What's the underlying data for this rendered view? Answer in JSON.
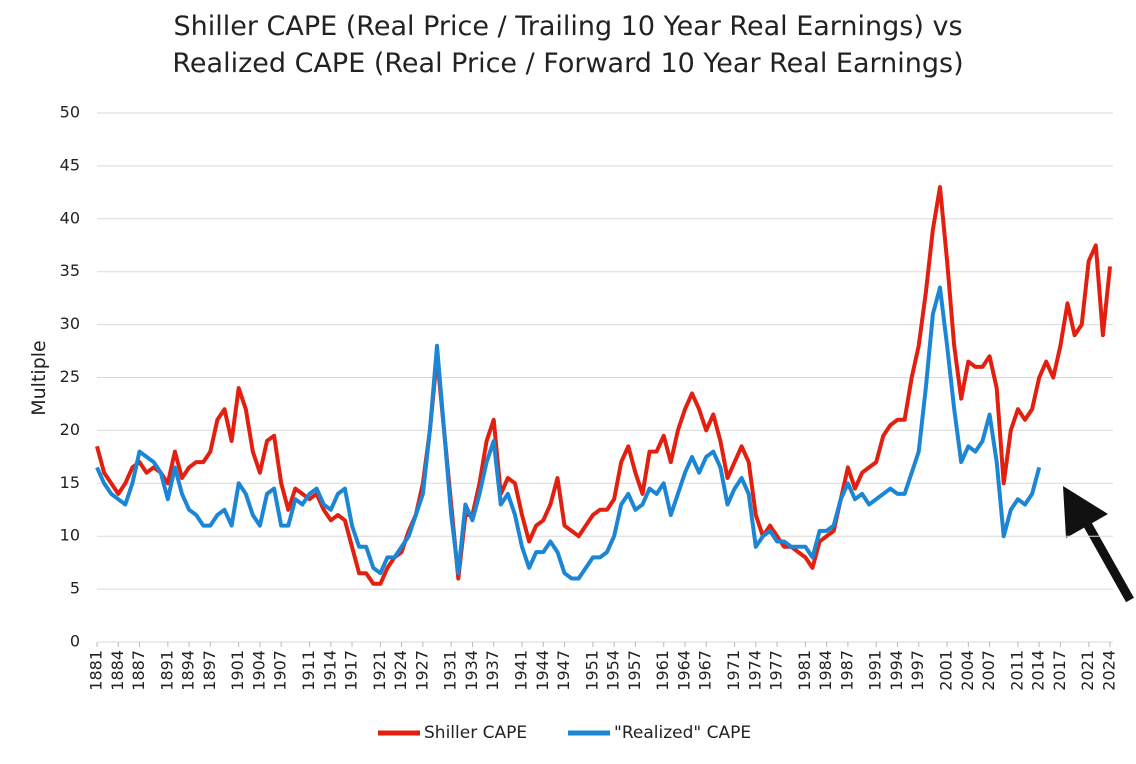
{
  "chart_data": {
    "type": "line",
    "title": [
      "Shiller CAPE (Real Price / Trailing 10 Year Real Earnings) vs",
      "Realized CAPE (Real Price / Forward 10 Year Real Earnings)"
    ],
    "y_label": "Multiple",
    "x": [
      1881,
      1882,
      1883,
      1884,
      1885,
      1886,
      1887,
      1888,
      1889,
      1890,
      1891,
      1892,
      1893,
      1894,
      1895,
      1896,
      1897,
      1898,
      1899,
      1900,
      1901,
      1902,
      1903,
      1904,
      1905,
      1906,
      1907,
      1908,
      1909,
      1910,
      1911,
      1912,
      1913,
      1914,
      1915,
      1916,
      1917,
      1918,
      1919,
      1920,
      1921,
      1922,
      1923,
      1924,
      1925,
      1926,
      1927,
      1928,
      1929,
      1930,
      1931,
      1932,
      1933,
      1934,
      1935,
      1936,
      1937,
      1938,
      1939,
      1940,
      1941,
      1942,
      1943,
      1944,
      1945,
      1946,
      1947,
      1948,
      1949,
      1950,
      1951,
      1952,
      1953,
      1954,
      1955,
      1956,
      1957,
      1958,
      1959,
      1960,
      1961,
      1962,
      1963,
      1964,
      1965,
      1966,
      1967,
      1968,
      1969,
      1970,
      1971,
      1972,
      1973,
      1974,
      1975,
      1976,
      1977,
      1978,
      1979,
      1980,
      1981,
      1982,
      1983,
      1984,
      1985,
      1986,
      1987,
      1988,
      1989,
      1990,
      1991,
      1992,
      1993,
      1994,
      1995,
      1996,
      1997,
      1998,
      1999,
      2000,
      2001,
      2002,
      2003,
      2004,
      2005,
      2006,
      2007,
      2008,
      2009,
      2010,
      2011,
      2012,
      2013,
      2014,
      2015,
      2016,
      2017,
      2018,
      2019,
      2020,
      2021,
      2022,
      2023,
      2024
    ],
    "series": [
      {
        "name": "Shiller CAPE",
        "color": "#e3200f",
        "values": [
          18.5,
          16,
          15,
          14,
          15,
          16.5,
          17,
          16,
          16.5,
          16,
          15,
          18,
          15.5,
          16.5,
          17,
          17,
          18,
          21,
          22,
          19,
          24,
          22,
          18,
          16,
          19,
          19.5,
          15,
          12.5,
          14.5,
          14,
          13.5,
          14,
          12.5,
          11.5,
          12,
          11.5,
          9,
          6.5,
          6.5,
          5.5,
          5.5,
          7,
          8,
          8.5,
          10.5,
          12,
          15,
          20,
          27,
          20,
          13,
          6,
          12,
          12,
          15,
          19,
          21,
          14,
          15.5,
          15,
          12,
          9.5,
          11,
          11.5,
          13,
          15.5,
          11,
          10.5,
          10,
          11,
          12,
          12.5,
          12.5,
          13.5,
          17,
          18.5,
          16,
          14,
          18,
          18,
          19.5,
          17,
          20,
          22,
          23.5,
          22,
          20,
          21.5,
          19,
          15.5,
          17,
          18.5,
          17,
          12,
          10,
          11,
          10,
          9,
          9,
          8.5,
          8,
          7,
          9.5,
          10,
          10.5,
          13.5,
          16.5,
          14.5,
          16,
          16.5,
          17,
          19.5,
          20.5,
          21,
          21,
          25,
          28,
          33,
          39,
          43,
          36,
          28,
          23,
          26.5,
          26,
          26,
          27,
          24,
          15,
          20,
          22,
          21,
          22,
          25,
          26.5,
          25,
          28,
          32,
          29,
          30,
          36,
          37.5,
          29,
          35.5
        ]
      },
      {
        "name": "\"Realized\" CAPE",
        "color": "#1c86d6",
        "values": [
          16.5,
          15,
          14,
          13.5,
          13,
          15,
          18,
          17.5,
          17,
          16,
          13.5,
          16.5,
          14,
          12.5,
          12,
          11,
          11,
          12,
          12.5,
          11,
          15,
          14,
          12,
          11,
          14,
          14.5,
          11,
          11,
          13.5,
          13,
          14,
          14.5,
          13,
          12.5,
          14,
          14.5,
          11,
          9,
          9,
          7,
          6.5,
          8,
          8,
          9,
          10,
          12,
          14,
          20,
          28,
          20,
          12,
          6.5,
          13,
          11.5,
          14,
          17,
          19,
          13,
          14,
          12,
          9,
          7,
          8.5,
          8.5,
          9.5,
          8.5,
          6.5,
          6,
          6,
          7,
          8,
          8,
          8.5,
          10,
          13,
          14,
          12.5,
          13,
          14.5,
          14,
          15,
          12,
          14,
          16,
          17.5,
          16,
          17.5,
          18,
          16.5,
          13,
          14.5,
          15.5,
          14,
          9,
          10,
          10.5,
          9.5,
          9.5,
          9,
          9,
          9,
          8,
          10.5,
          10.5,
          11,
          13.5,
          15,
          13.5,
          14,
          13,
          13.5,
          14,
          14.5,
          14,
          14,
          16,
          18,
          24,
          31,
          33.5,
          28,
          22,
          17,
          18.5,
          18,
          19,
          21.5,
          17,
          10,
          12.5,
          13.5,
          13,
          14,
          16.5,
          null,
          null,
          null,
          null,
          null,
          null,
          null,
          null,
          null,
          null
        ]
      }
    ],
    "xlim": [
      1881,
      2024
    ],
    "xticks": [
      1881,
      1884,
      1887,
      1891,
      1894,
      1897,
      1901,
      1904,
      1907,
      1911,
      1914,
      1917,
      1921,
      1924,
      1927,
      1931,
      1934,
      1937,
      1941,
      1944,
      1947,
      1951,
      1954,
      1957,
      1961,
      1964,
      1967,
      1971,
      1974,
      1977,
      1981,
      1984,
      1987,
      1991,
      1994,
      1997,
      2001,
      2004,
      2007,
      2011,
      2014,
      2017,
      2021,
      2024
    ],
    "ylim": [
      0,
      50
    ],
    "yticks": [
      0,
      5,
      10,
      15,
      20,
      25,
      30,
      35,
      40,
      45,
      50
    ],
    "grid": true,
    "legend": "bottom"
  }
}
